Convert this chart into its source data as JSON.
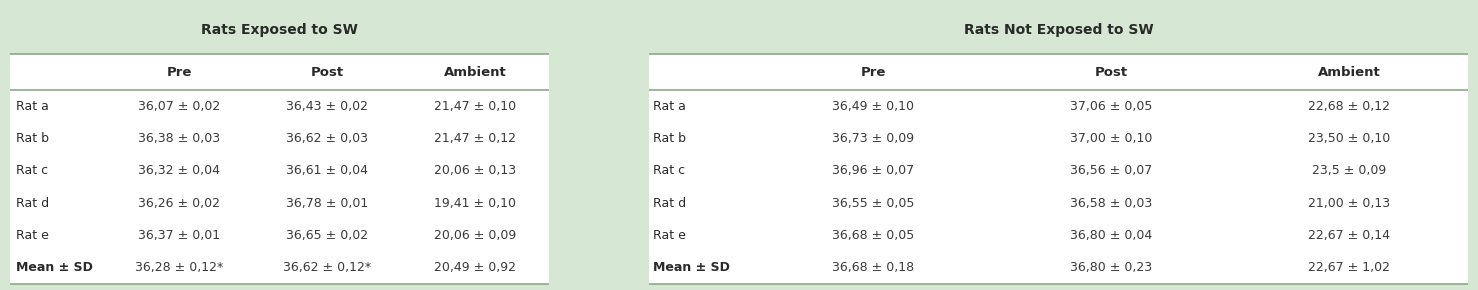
{
  "bg_color": "#d6e8d4",
  "white_color": "#ffffff",
  "text_color": "#3a3a3a",
  "bold_color": "#2a2a2a",
  "header1": "Rats Exposed to SW",
  "header2": "Rats Not Exposed to SW",
  "sub_headers": [
    "Pre",
    "Post",
    "Ambient"
  ],
  "row_labels": [
    "Rat a",
    "Rat b",
    "Rat c",
    "Rat d",
    "Rat e",
    "Mean ± SD"
  ],
  "exposed_data": [
    [
      "36,07 ± 0,02",
      "36,43 ± 0,02",
      "21,47 ± 0,10"
    ],
    [
      "36,38 ± 0,03",
      "36,62 ± 0,03",
      "21,47 ± 0,12"
    ],
    [
      "36,32 ± 0,04",
      "36,61 ± 0,04",
      "20,06 ± 0,13"
    ],
    [
      "36,26 ± 0,02",
      "36,78 ± 0,01",
      "19,41 ± 0,10"
    ],
    [
      "36,37 ± 0,01",
      "36,65 ± 0,02",
      "20,06 ± 0,09"
    ],
    [
      "36,28 ± 0,12*",
      "36,62 ± 0,12*",
      "20,49 ± 0,92"
    ]
  ],
  "not_exposed_data": [
    [
      "36,49 ± 0,10",
      "37,06 ± 0,05",
      "22,68 ± 0,12"
    ],
    [
      "36,73 ± 0,09",
      "37,00 ± 0,10",
      "23,50 ± 0,10"
    ],
    [
      "36,96 ± 0,07",
      "36,56 ± 0,07",
      "23,5 ± 0,09"
    ],
    [
      "36,55 ± 0,05",
      "36,58 ± 0,03",
      "21,00 ± 0,13"
    ],
    [
      "36,68 ± 0,05",
      "36,80 ± 0,04",
      "22,67 ± 0,14"
    ],
    [
      "36,68 ± 0,18",
      "36,80 ± 0,23",
      "22,67 ± 1,02"
    ]
  ],
  "not_exposed_row_labels": [
    "Rat a",
    "Rat b",
    "Rat c",
    "Rat d",
    "Rat e",
    "Mean ± SD"
  ],
  "line_color": "#8aaa88",
  "figsize": [
    14.78,
    2.9
  ],
  "dpi": 100
}
